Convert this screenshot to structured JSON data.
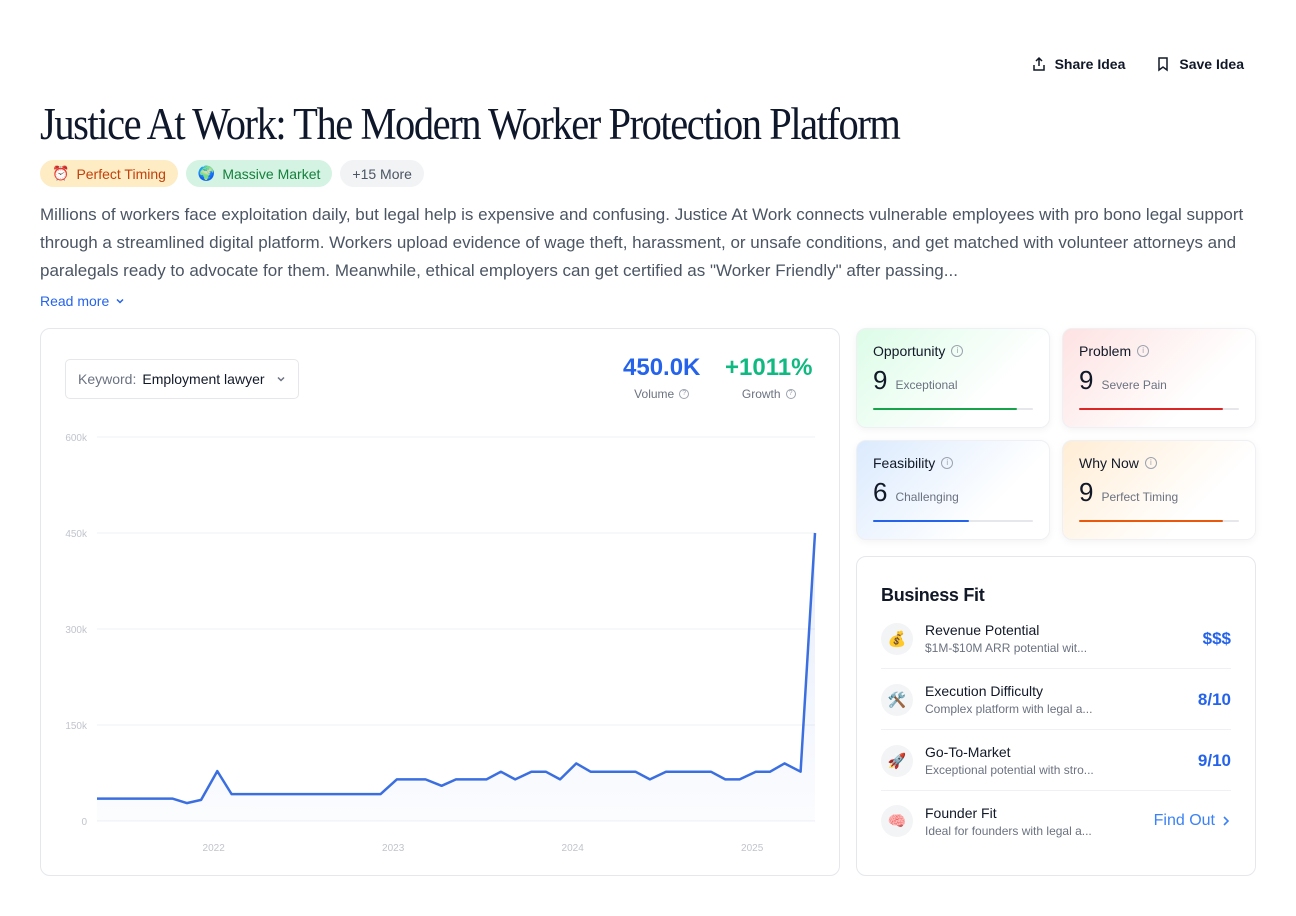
{
  "actions": {
    "share": "Share Idea",
    "save": "Save Idea"
  },
  "title": "Justice At Work: The Modern Worker Protection Platform",
  "badges": {
    "timing": "Perfect Timing",
    "timing_icon": "⏰",
    "market": "Massive Market",
    "market_icon": "🌍",
    "more": "+15 More"
  },
  "description": "Millions of workers face exploitation daily, but legal help is expensive and confusing. Justice At Work connects vulnerable employees with pro bono legal support through a streamlined digital platform. Workers upload evidence of wage theft, harassment, or unsafe conditions, and get matched with volunteer attorneys and paralegals ready to advocate for them. Meanwhile, ethical employers can get certified as \"Worker Friendly\" after passing...",
  "read_more": "Read more",
  "keyword": {
    "label": "Keyword:",
    "value": "Employment lawyer"
  },
  "metrics": {
    "volume": "450.0K",
    "volume_label": "Volume",
    "growth": "+1011%",
    "growth_label": "Growth"
  },
  "scores": [
    {
      "name": "Opportunity",
      "value": "9",
      "word": "Exceptional",
      "level": 0.9,
      "color": "#16a34a"
    },
    {
      "name": "Problem",
      "value": "9",
      "word": "Severe Pain",
      "level": 0.9,
      "color": "#dc2626"
    },
    {
      "name": "Feasibility",
      "value": "6",
      "word": "Challenging",
      "level": 0.6,
      "color": "#2563eb"
    },
    {
      "name": "Why Now",
      "value": "9",
      "word": "Perfect Timing",
      "level": 0.9,
      "color": "#ea580c"
    }
  ],
  "business_fit": {
    "title": "Business Fit",
    "rows": [
      {
        "icon": "💰",
        "name": "Revenue Potential",
        "sub": "$1M-$10M ARR potential wit...",
        "value": "$$$"
      },
      {
        "icon": "🛠️",
        "name": "Execution Difficulty",
        "sub": "Complex platform with legal a...",
        "value": "8/10"
      },
      {
        "icon": "🚀",
        "name": "Go-To-Market",
        "sub": "Exceptional potential with stro...",
        "value": "9/10"
      },
      {
        "icon": "🧠",
        "name": "Founder Fit",
        "sub": "Ideal for founders with legal a...",
        "value": "Find Out"
      }
    ]
  },
  "chart_data": {
    "type": "area",
    "ylim": [
      0,
      500000
    ],
    "yticks": [
      "0",
      "150k",
      "300k",
      "450k",
      "600k"
    ],
    "xticks": [
      "2022",
      "2023",
      "2024",
      "2025"
    ],
    "xlim": [
      2021.35,
      2025.35
    ],
    "grid": true,
    "color": "#3b6fe0",
    "x": [
      2021.35,
      2021.43,
      2021.52,
      2021.6,
      2021.68,
      2021.77,
      2021.85,
      2021.93,
      2022.02,
      2022.1,
      2022.18,
      2022.27,
      2022.35,
      2022.43,
      2022.52,
      2022.6,
      2022.68,
      2022.77,
      2022.85,
      2022.93,
      2023.02,
      2023.1,
      2023.18,
      2023.27,
      2023.35,
      2023.43,
      2023.52,
      2023.6,
      2023.68,
      2023.77,
      2023.85,
      2023.93,
      2024.02,
      2024.1,
      2024.18,
      2024.27,
      2024.35,
      2024.43,
      2024.52,
      2024.6,
      2024.68,
      2024.77,
      2024.85,
      2024.93,
      2025.02,
      2025.1,
      2025.18,
      2025.27,
      2025.35
    ],
    "values": [
      35000,
      35000,
      35000,
      35000,
      35000,
      35000,
      28000,
      33000,
      78000,
      42000,
      42000,
      42000,
      42000,
      42000,
      42000,
      42000,
      42000,
      42000,
      42000,
      42000,
      65000,
      65000,
      65000,
      55000,
      65000,
      65000,
      65000,
      77000,
      65000,
      77000,
      77000,
      65000,
      90000,
      77000,
      77000,
      77000,
      77000,
      65000,
      77000,
      77000,
      77000,
      77000,
      65000,
      65000,
      77000,
      77000,
      90000,
      77000,
      450000
    ]
  }
}
